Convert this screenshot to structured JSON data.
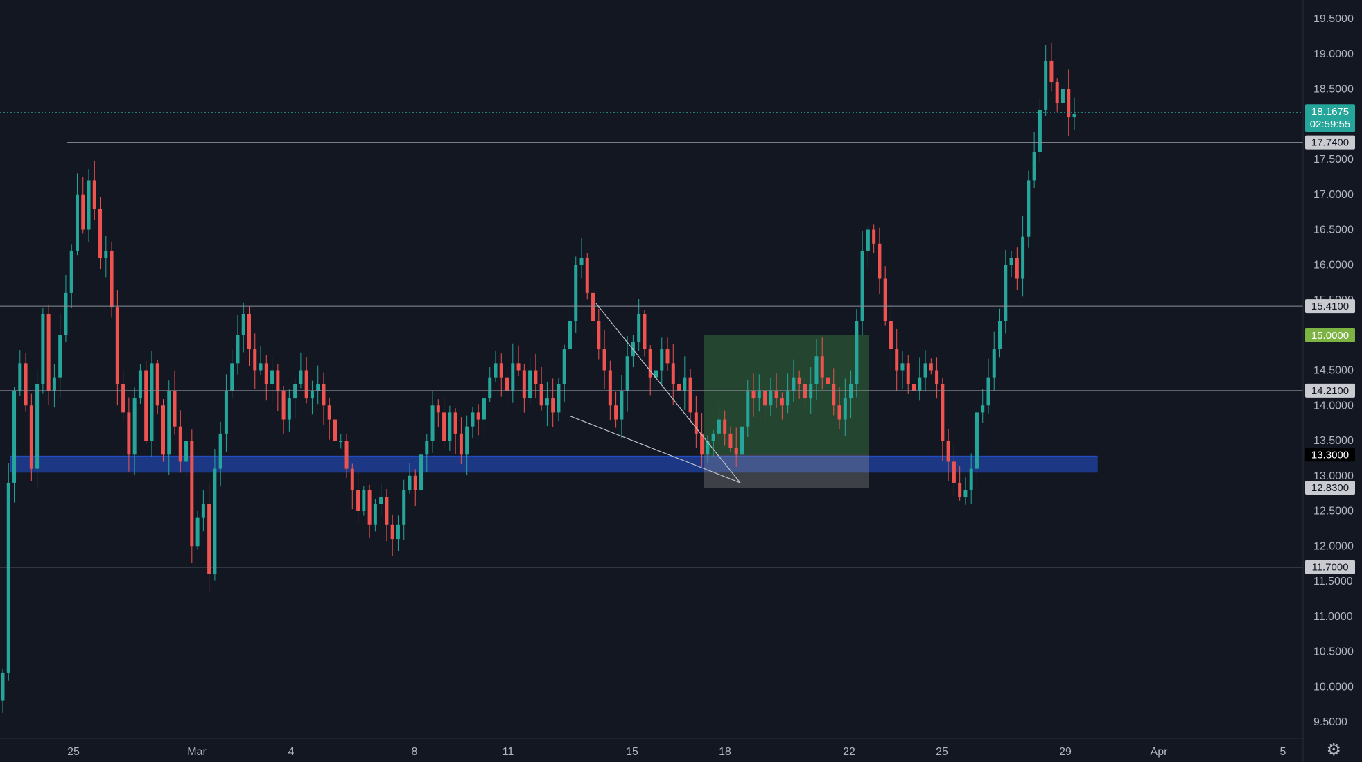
{
  "colors": {
    "background": "#131722",
    "up": "#26a69a",
    "down": "#ef5350",
    "axis_text": "#b2b5be",
    "grid_line": "#8a8f9a",
    "support_zone": "#2962ff",
    "target_box": "#4caf50",
    "stop_box": "#9e9e9e",
    "last_price": "#26a69a",
    "target_label": "#7cb342"
  },
  "chart_data": {
    "type": "candlestick",
    "title": "",
    "ylim": [
      9.2,
      19.8
    ],
    "y_ticks": [
      "9.5000",
      "10.0000",
      "10.5000",
      "11.0000",
      "11.5000",
      "12.0000",
      "12.5000",
      "13.0000",
      "13.5000",
      "14.0000",
      "14.5000",
      "15.0000",
      "15.5000",
      "16.0000",
      "16.5000",
      "17.0000",
      "17.5000",
      "18.0000",
      "18.5000",
      "19.0000",
      "19.5000"
    ],
    "x_ticks": [
      "25",
      "Mar",
      "4",
      "8",
      "11",
      "15",
      "18",
      "22",
      "25",
      "29",
      "Apr",
      "5"
    ],
    "horizontal_levels": [
      "17.7400",
      "15.4100",
      "14.2100",
      "11.7000"
    ],
    "price_tags": [
      "17.7400",
      "15.4100",
      "15.0000",
      "14.2100",
      "13.3000",
      "12.8300",
      "11.7000"
    ],
    "last_price": "18.1675",
    "countdown": "02:59:55",
    "support_zone": [
      13.05,
      13.28
    ],
    "trade_box": {
      "entry": 13.3,
      "target": 15.0,
      "stop": 12.83
    },
    "wedge": {
      "upper": [
        15.45,
        12.9
      ],
      "lower": [
        13.85,
        12.9
      ]
    },
    "candles_close": [
      10.2,
      12.9,
      14.2,
      14.6,
      14.0,
      13.1,
      14.3,
      15.3,
      14.2,
      14.4,
      15.0,
      15.6,
      16.2,
      17.0,
      16.5,
      17.2,
      16.8,
      16.1,
      16.2,
      15.4,
      14.3,
      13.9,
      13.3,
      14.1,
      14.5,
      13.5,
      14.6,
      14.0,
      13.3,
      14.2,
      13.7,
      13.2,
      13.5,
      12.0,
      12.4,
      12.6,
      11.6,
      13.1,
      13.6,
      14.2,
      14.6,
      15.0,
      15.3,
      14.8,
      14.5,
      14.6,
      14.3,
      14.5,
      14.2,
      13.8,
      14.1,
      14.3,
      14.5,
      14.1,
      14.2,
      14.3,
      14.0,
      13.8,
      13.5,
      13.5,
      13.1,
      12.8,
      12.5,
      12.8,
      12.3,
      12.6,
      12.7,
      12.3,
      12.1,
      12.3,
      12.8,
      13.0,
      12.8,
      13.3,
      13.5,
      14.0,
      13.9,
      13.5,
      13.9,
      13.6,
      13.3,
      13.7,
      13.9,
      13.8,
      14.1,
      14.4,
      14.6,
      14.4,
      14.2,
      14.6,
      14.5,
      14.1,
      14.5,
      14.3,
      14.0,
      14.1,
      13.9,
      14.3,
      14.8,
      15.2,
      16.0,
      16.1,
      15.6,
      15.2,
      14.8,
      14.5,
      14.0,
      13.8,
      14.2,
      14.7,
      14.9,
      15.3,
      14.8,
      14.4,
      14.5,
      14.8,
      14.6,
      14.3,
      14.2,
      14.4,
      13.9,
      13.6,
      13.3,
      13.5,
      13.6,
      13.8,
      13.6,
      13.4,
      13.3,
      13.7,
      14.2,
      14.1,
      14.2,
      14.0,
      14.2,
      14.1,
      14.0,
      14.2,
      14.4,
      14.3,
      14.1,
      14.3,
      14.7,
      14.4,
      14.3,
      14.0,
      13.8,
      14.1,
      14.3,
      15.2,
      16.2,
      16.5,
      16.3,
      15.8,
      15.2,
      14.8,
      14.5,
      14.6,
      14.3,
      14.2,
      14.4,
      14.6,
      14.5,
      14.3,
      13.5,
      13.2,
      12.9,
      12.7,
      12.8,
      13.1,
      13.9,
      14.0,
      14.4,
      14.8,
      15.2,
      16.0,
      16.1,
      15.8,
      16.4,
      17.2,
      17.6,
      18.2,
      18.9,
      18.6,
      18.3,
      18.5,
      18.1,
      18.15
    ],
    "candles_color": "close vs previous close"
  }
}
